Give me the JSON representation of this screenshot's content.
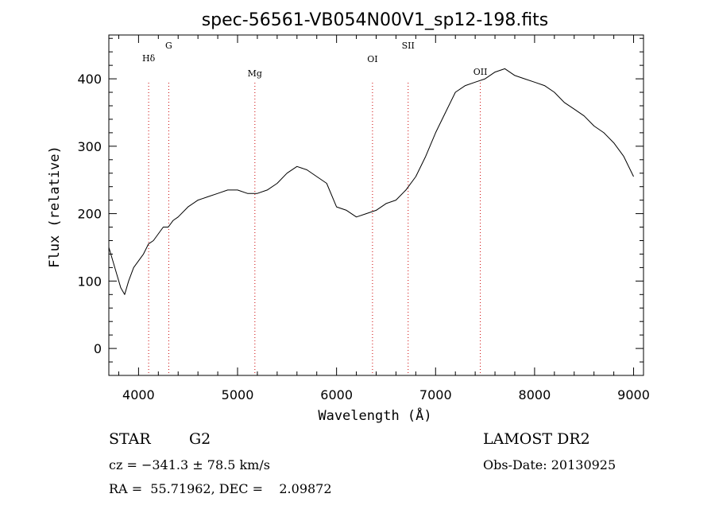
{
  "chart_data": {
    "type": "line",
    "title": "spec-56561-VB054N00V1_sp12-198.fits",
    "xlabel": "Wavelength (Å)",
    "ylabel": "Flux (relative)",
    "xlim": [
      3700,
      9100
    ],
    "ylim": [
      -40,
      465
    ],
    "x_ticks": [
      4000,
      5000,
      6000,
      7000,
      8000,
      9000
    ],
    "y_ticks": [
      0,
      100,
      200,
      300,
      400
    ],
    "series": [
      {
        "x": [
          3700,
          3740,
          3780,
          3820,
          3860,
          3900,
          3950,
          4000,
          4050,
          4100,
          4150,
          4200,
          4250,
          4300,
          4350,
          4400,
          4500,
          4600,
          4700,
          4800,
          4900,
          5000,
          5100,
          5200,
          5300,
          5400,
          5500,
          5600,
          5700,
          5800,
          5900,
          6000,
          6100,
          6200,
          6300,
          6400,
          6500,
          6600,
          6700,
          6800,
          6900,
          7000,
          7100,
          7200,
          7300,
          7400,
          7500,
          7600,
          7700,
          7800,
          7900,
          8000,
          8100,
          8200,
          8300,
          8400,
          8500,
          8600,
          8700,
          8800,
          8900,
          9000
        ],
        "y": [
          150,
          130,
          110,
          90,
          80,
          100,
          120,
          130,
          140,
          155,
          160,
          170,
          180,
          180,
          190,
          195,
          210,
          220,
          225,
          230,
          235,
          235,
          230,
          230,
          235,
          245,
          260,
          270,
          265,
          255,
          245,
          210,
          205,
          195,
          200,
          205,
          215,
          220,
          235,
          255,
          285,
          320,
          350,
          380,
          390,
          395,
          400,
          410,
          415,
          405,
          400,
          395,
          390,
          380,
          365,
          355,
          345,
          330,
          320,
          305,
          285,
          255
        ]
      }
    ],
    "line_markers": [
      {
        "label": "Hδ",
        "x": 4102
      },
      {
        "label": "G",
        "x": 4305
      },
      {
        "label": "Mg",
        "x": 5175
      },
      {
        "label": "OI",
        "x": 6363
      },
      {
        "label": "SII",
        "x": 6723
      },
      {
        "label": "OII",
        "x": 7452
      }
    ],
    "grid": false,
    "legend": "none"
  },
  "info": {
    "object_class": "STAR",
    "subclass": "G2",
    "survey": "LAMOST DR2",
    "redshift": "cz = −341.3 ± 78.5 km/s",
    "obs_date": "Obs-Date: 20130925",
    "coords": "RA =  55.71962, DEC =    2.09872"
  },
  "colors": {
    "spectrum": "#000000",
    "marker": "#cc0000",
    "axis": "#000000"
  }
}
